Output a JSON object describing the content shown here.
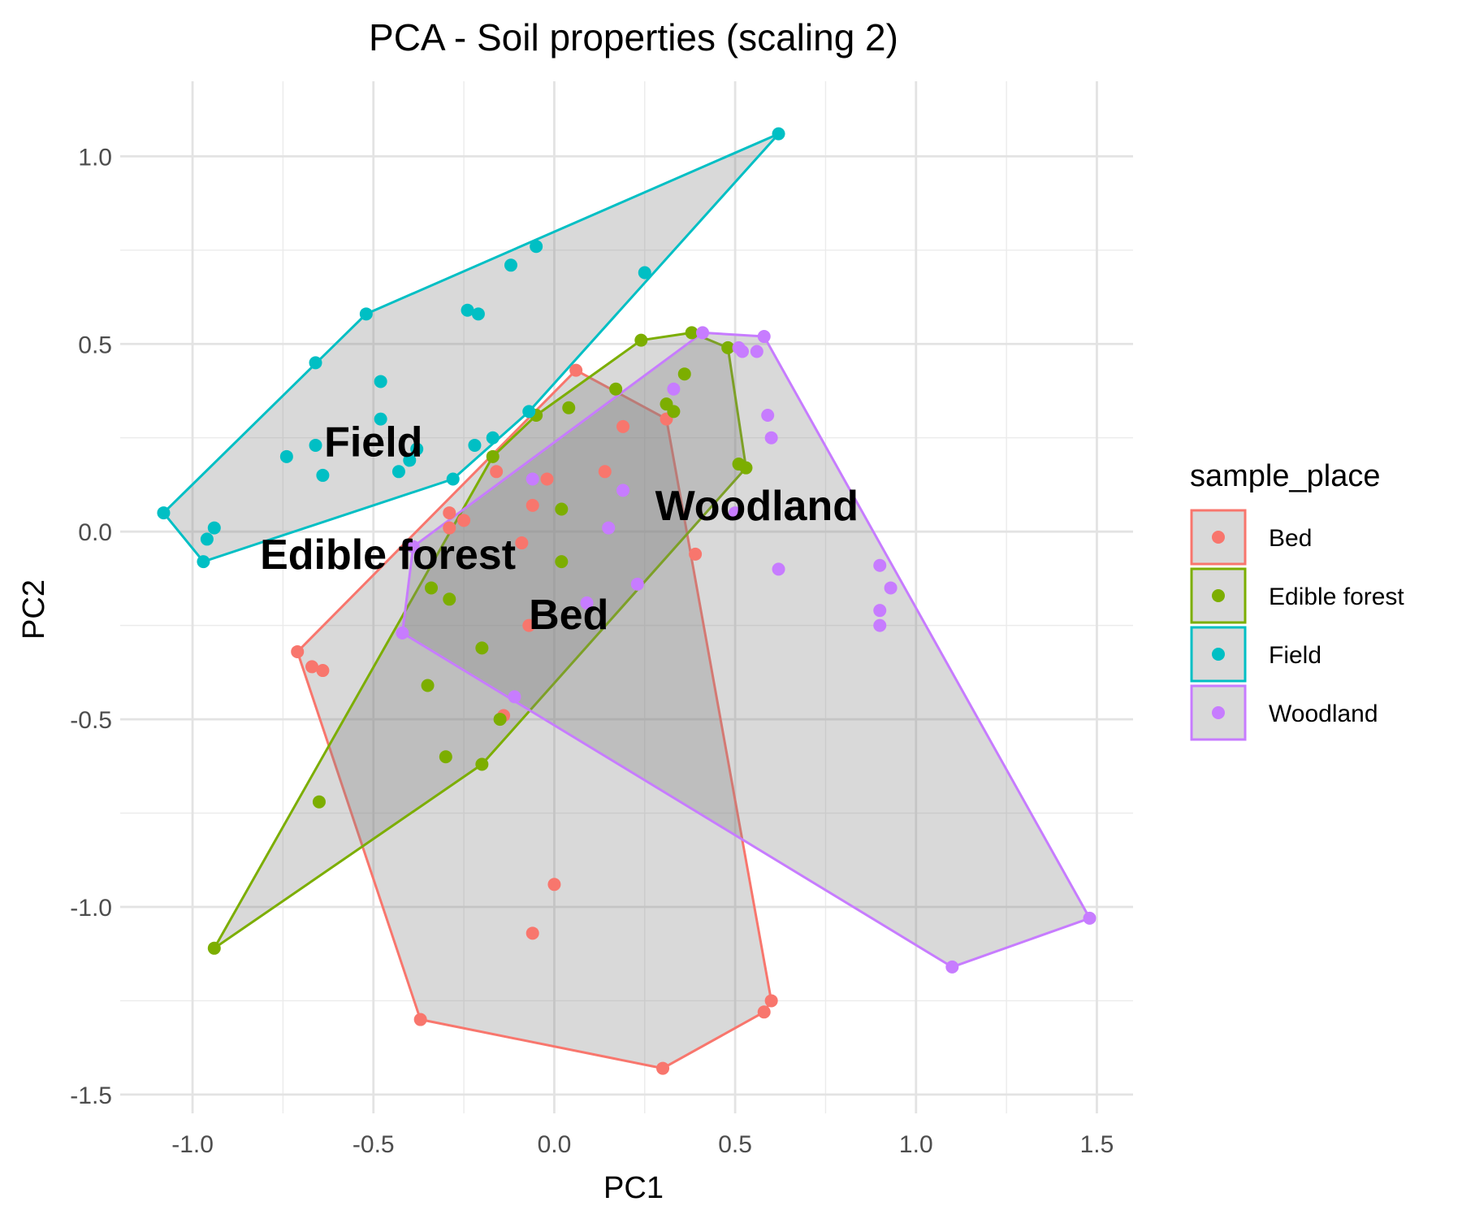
{
  "chart_data": {
    "type": "scatter",
    "title": "PCA - Soil properties (scaling 2)",
    "xlabel": "PC1",
    "ylabel": "PC2",
    "xlim": [
      -1.2,
      1.6
    ],
    "ylim": [
      -1.55,
      1.2
    ],
    "x_ticks": [
      -1.0,
      -0.5,
      0.0,
      0.5,
      1.0,
      1.5
    ],
    "y_ticks": [
      -1.5,
      -1.0,
      -0.5,
      0.0,
      0.5,
      1.0
    ],
    "x_tick_labels": [
      "-1.0",
      "-0.5",
      "0.0",
      "0.5",
      "1.0",
      "1.5"
    ],
    "y_tick_labels": [
      "-1.5",
      "-1.0",
      "-0.5",
      "0.0",
      "0.5",
      "1.0"
    ],
    "grid": true,
    "hull_fill": "#808080",
    "hull_fill_opacity": 0.3,
    "legend": {
      "title": "sample_place",
      "position": "right"
    },
    "series": [
      {
        "name": "Bed",
        "color": "#F8766D",
        "label": "Bed",
        "label_position": [
          0.04,
          -0.22
        ],
        "hull": [
          [
            0.06,
            0.43
          ],
          [
            0.31,
            0.3
          ],
          [
            0.6,
            -1.25
          ],
          [
            0.58,
            -1.28
          ],
          [
            0.3,
            -1.43
          ],
          [
            -0.37,
            -1.3
          ],
          [
            -0.71,
            -0.32
          ]
        ],
        "points": [
          [
            0.06,
            0.43
          ],
          [
            0.31,
            0.3
          ],
          [
            0.6,
            -1.25
          ],
          [
            0.58,
            -1.28
          ],
          [
            0.3,
            -1.43
          ],
          [
            -0.37,
            -1.3
          ],
          [
            -0.71,
            -0.32
          ],
          [
            0.19,
            0.28
          ],
          [
            -0.02,
            0.14
          ],
          [
            0.14,
            0.16
          ],
          [
            -0.06,
            0.07
          ],
          [
            -0.29,
            0.05
          ],
          [
            -0.25,
            0.03
          ],
          [
            -0.29,
            0.01
          ],
          [
            -0.09,
            -0.03
          ],
          [
            0.39,
            -0.06
          ],
          [
            -0.07,
            -0.25
          ],
          [
            -0.67,
            -0.36
          ],
          [
            -0.64,
            -0.37
          ],
          [
            -0.14,
            -0.49
          ],
          [
            -0.16,
            0.16
          ],
          [
            0.0,
            -0.94
          ],
          [
            -0.06,
            -1.07
          ]
        ]
      },
      {
        "name": "Edible forest",
        "color": "#7CAE00",
        "label": "Edible forest",
        "label_position": [
          -0.46,
          -0.06
        ],
        "hull": [
          [
            0.24,
            0.51
          ],
          [
            0.38,
            0.53
          ],
          [
            0.48,
            0.49
          ],
          [
            0.53,
            0.17
          ],
          [
            -0.2,
            -0.62
          ],
          [
            -0.94,
            -1.11
          ],
          [
            -0.17,
            0.2
          ],
          [
            -0.05,
            0.31
          ]
        ],
        "points": [
          [
            0.24,
            0.51
          ],
          [
            0.38,
            0.53
          ],
          [
            0.48,
            0.49
          ],
          [
            0.53,
            0.17
          ],
          [
            -0.2,
            -0.62
          ],
          [
            -0.94,
            -1.11
          ],
          [
            -0.17,
            0.2
          ],
          [
            -0.05,
            0.31
          ],
          [
            0.36,
            0.42
          ],
          [
            0.17,
            0.38
          ],
          [
            0.31,
            0.34
          ],
          [
            0.33,
            0.32
          ],
          [
            0.04,
            0.33
          ],
          [
            0.51,
            0.18
          ],
          [
            0.02,
            0.06
          ],
          [
            0.02,
            -0.08
          ],
          [
            -0.34,
            -0.15
          ],
          [
            -0.29,
            -0.18
          ],
          [
            -0.2,
            -0.31
          ],
          [
            -0.35,
            -0.41
          ],
          [
            -0.15,
            -0.5
          ],
          [
            -0.3,
            -0.6
          ],
          [
            -0.65,
            -0.72
          ]
        ]
      },
      {
        "name": "Field",
        "color": "#00BFC4",
        "label": "Field",
        "label_position": [
          -0.5,
          0.24
        ],
        "hull": [
          [
            -1.08,
            0.05
          ],
          [
            -0.52,
            0.58
          ],
          [
            0.62,
            1.06
          ],
          [
            -0.07,
            0.32
          ],
          [
            -0.28,
            0.14
          ],
          [
            -0.97,
            -0.08
          ]
        ],
        "points": [
          [
            -1.08,
            0.05
          ],
          [
            -0.52,
            0.58
          ],
          [
            0.62,
            1.06
          ],
          [
            -0.07,
            0.32
          ],
          [
            -0.28,
            0.14
          ],
          [
            -0.97,
            -0.08
          ],
          [
            -0.66,
            0.45
          ],
          [
            -0.05,
            0.76
          ],
          [
            -0.12,
            0.71
          ],
          [
            0.25,
            0.69
          ],
          [
            -0.24,
            0.59
          ],
          [
            -0.21,
            0.58
          ],
          [
            -0.48,
            0.4
          ],
          [
            -0.48,
            0.3
          ],
          [
            -0.66,
            0.23
          ],
          [
            -0.38,
            0.22
          ],
          [
            -0.22,
            0.23
          ],
          [
            -0.17,
            0.25
          ],
          [
            -0.74,
            0.2
          ],
          [
            -0.4,
            0.19
          ],
          [
            -0.43,
            0.16
          ],
          [
            -0.64,
            0.15
          ],
          [
            -0.94,
            0.01
          ],
          [
            -0.96,
            -0.02
          ]
        ]
      },
      {
        "name": "Woodland",
        "color": "#C77CFF",
        "label": "Woodland",
        "label_position": [
          0.56,
          0.07
        ],
        "hull": [
          [
            0.41,
            0.53
          ],
          [
            0.58,
            0.52
          ],
          [
            1.48,
            -1.03
          ],
          [
            1.1,
            -1.16
          ],
          [
            -0.42,
            -0.27
          ],
          [
            -0.39,
            -0.04
          ]
        ],
        "points": [
          [
            0.41,
            0.53
          ],
          [
            0.58,
            0.52
          ],
          [
            1.48,
            -1.03
          ],
          [
            1.1,
            -1.16
          ],
          [
            -0.42,
            -0.27
          ],
          [
            -0.39,
            -0.04
          ],
          [
            0.51,
            0.49
          ],
          [
            0.52,
            0.48
          ],
          [
            0.56,
            0.48
          ],
          [
            0.33,
            0.38
          ],
          [
            0.59,
            0.31
          ],
          [
            0.6,
            0.25
          ],
          [
            -0.06,
            0.14
          ],
          [
            0.19,
            0.11
          ],
          [
            0.5,
            0.05
          ],
          [
            0.15,
            0.01
          ],
          [
            0.62,
            -0.1
          ],
          [
            0.9,
            -0.09
          ],
          [
            0.93,
            -0.15
          ],
          [
            0.23,
            -0.14
          ],
          [
            0.09,
            -0.19
          ],
          [
            0.9,
            -0.21
          ],
          [
            0.9,
            -0.25
          ],
          [
            -0.11,
            -0.44
          ]
        ]
      }
    ]
  }
}
